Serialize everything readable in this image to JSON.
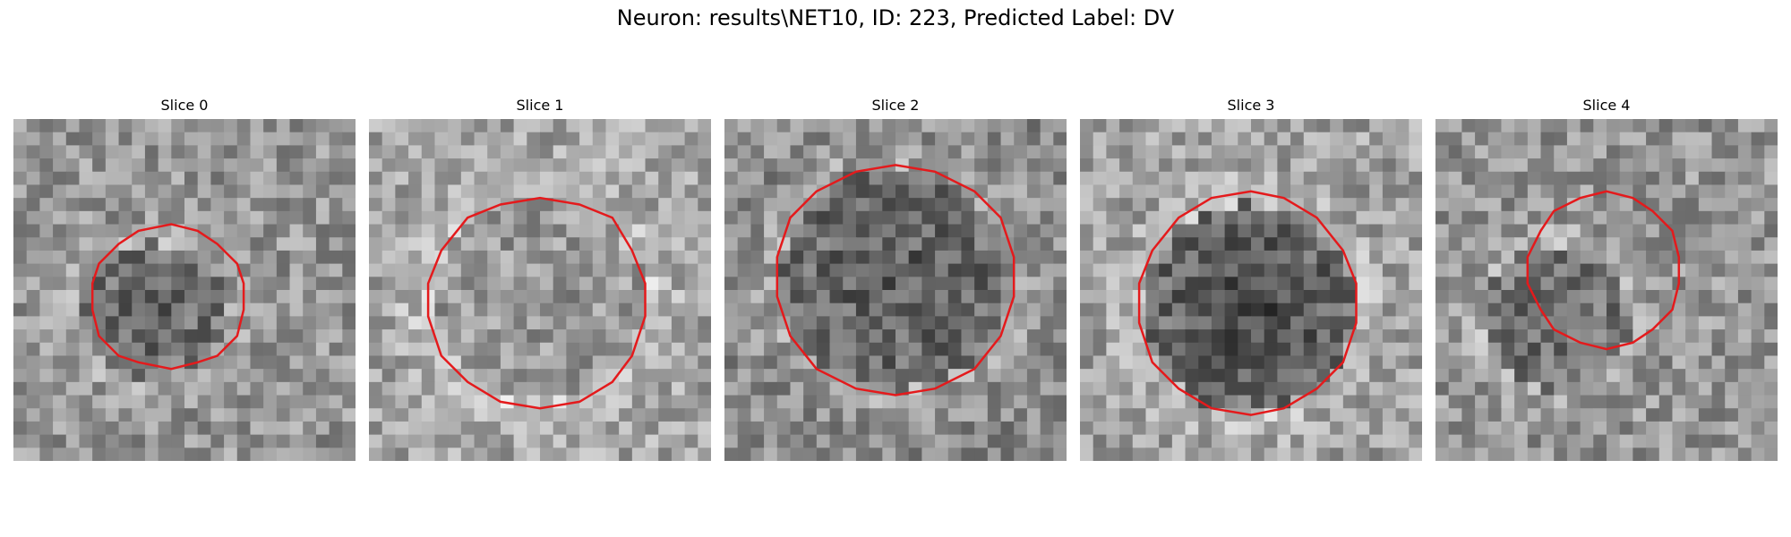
{
  "title": "Neuron: results\\NET10, ID: 223, Predicted Label: DV",
  "colors": {
    "contour": "#e41a1c",
    "background": "#ffffff"
  },
  "panels": [
    {
      "title": "Slice 0",
      "seed": 11,
      "base": 150,
      "blob": -55,
      "bright": 35
    },
    {
      "title": "Slice 1",
      "seed": 23,
      "base": 165,
      "blob": -15,
      "bright": 60
    },
    {
      "title": "Slice 2",
      "seed": 37,
      "base": 140,
      "blob": -50,
      "bright": 45
    },
    {
      "title": "Slice 3",
      "seed": 51,
      "base": 160,
      "blob": -90,
      "bright": 45
    },
    {
      "title": "Slice 4",
      "seed": 67,
      "base": 150,
      "blob": -50,
      "bright": 40
    }
  ]
}
